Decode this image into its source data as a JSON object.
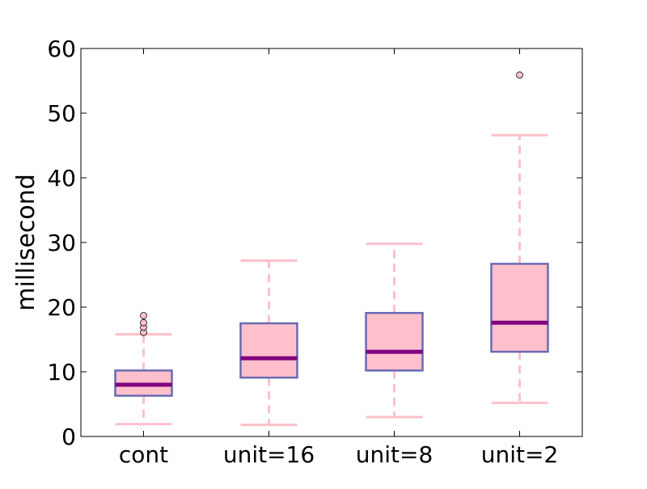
{
  "chart_data": {
    "type": "box",
    "title": "",
    "xlabel": "",
    "ylabel": "millisecond",
    "ylim": [
      0,
      60
    ],
    "yticks": [
      0,
      10,
      20,
      30,
      40,
      50,
      60
    ],
    "categories": [
      "cont",
      "unit=16",
      "unit=8",
      "unit=2"
    ],
    "boxes": [
      {
        "category": "cont",
        "whisker_low": 1.9,
        "q1": 6.3,
        "median": 8.0,
        "q3": 10.2,
        "whisker_high": 15.8,
        "outliers": [
          16.1,
          16.9,
          17.6,
          18.7
        ]
      },
      {
        "category": "unit=16",
        "whisker_low": 1.8,
        "q1": 9.1,
        "median": 12.1,
        "q3": 17.5,
        "whisker_high": 27.2,
        "outliers": []
      },
      {
        "category": "unit=8",
        "whisker_low": 3.0,
        "q1": 10.2,
        "median": 13.1,
        "q3": 19.1,
        "whisker_high": 29.8,
        "outliers": []
      },
      {
        "category": "unit=2",
        "whisker_low": 5.2,
        "q1": 13.1,
        "median": 17.6,
        "q3": 26.7,
        "whisker_high": 46.6,
        "outliers": [
          55.9
        ]
      }
    ],
    "grid": false,
    "colors": {
      "box_fill": "#ffc0cb",
      "box_edge": "#6a6ab4",
      "median": "#800080",
      "whisker": "#ffc0cb",
      "outlier_fill": "#ffc0cb",
      "axis": "#000000"
    }
  }
}
